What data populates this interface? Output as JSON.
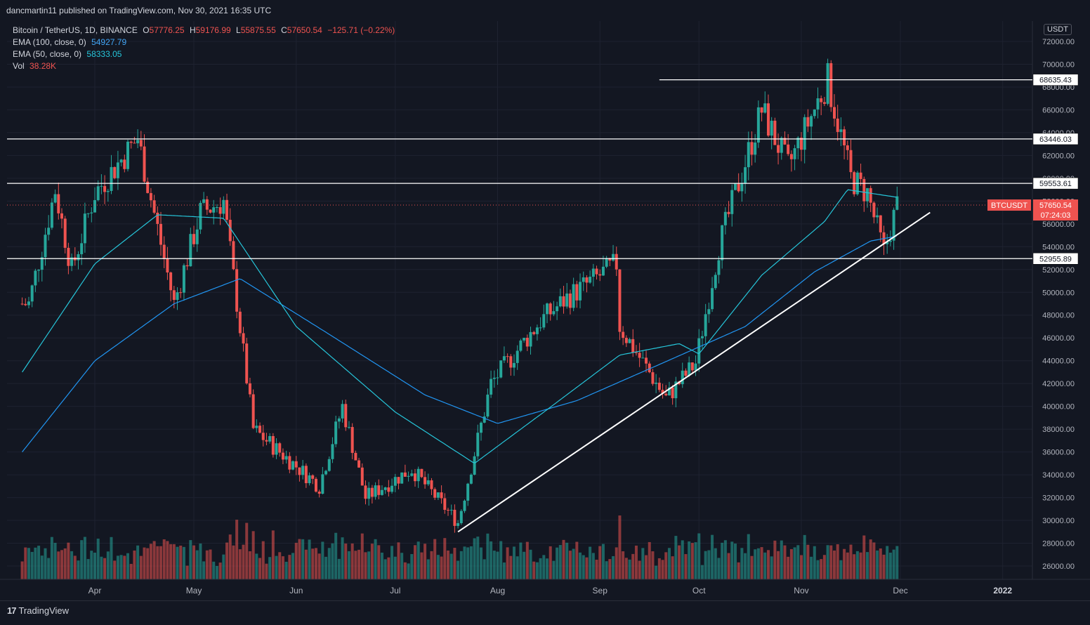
{
  "publisher_line": "dancmartin11 published on TradingView.com, Nov 30, 2021 16:35 UTC",
  "legend": {
    "symbol": "Bitcoin / TetherUS, 1D, BINANCE",
    "ohlc": {
      "o_label": "O",
      "o": "57776.25",
      "h_label": "H",
      "h": "59176.99",
      "l_label": "L",
      "l": "55875.55",
      "c_label": "C",
      "c": "57650.54",
      "chg": "−125.71 (−0.22%)"
    },
    "ema100_label": "EMA (100, close, 0)",
    "ema100_value": "54927.79",
    "ema50_label": "EMA (50, close, 0)",
    "ema50_value": "58333.05",
    "vol_label": "Vol",
    "vol_value": "38.28K"
  },
  "currency_button": "USDT",
  "branding": "TradingView",
  "colors": {
    "background": "#131722",
    "up": "#26a69a",
    "down": "#ef5350",
    "ema50": "#26c6da",
    "ema100": "#2196f3",
    "hline": "#ffffff",
    "last_price_tag": "#ef5350"
  },
  "chart_data": {
    "type": "candlestick",
    "symbol_label": "BTCUSDT",
    "last_price": "57650.54",
    "countdown": "07:24:03",
    "y_axis": {
      "ticks": [
        "72000.00",
        "70000.00",
        "68000.00",
        "66000.00",
        "64000.00",
        "62000.00",
        "60000.00",
        "58000.00",
        "56000.00",
        "54000.00",
        "52000.00",
        "50000.00",
        "48000.00",
        "46000.00",
        "44000.00",
        "42000.00",
        "40000.00",
        "38000.00",
        "36000.00",
        "34000.00",
        "32000.00",
        "30000.00",
        "28000.00",
        "26000.00"
      ],
      "range": [
        25000,
        73000
      ],
      "scale": "linear"
    },
    "x_axis": {
      "ticks": [
        "Apr",
        "May",
        "Jun",
        "Jul",
        "Aug",
        "Sep",
        "Oct",
        "Nov",
        "Dec",
        "2022"
      ]
    },
    "horizontal_levels": [
      {
        "value": 68635.43,
        "label": "68635.43"
      },
      {
        "value": 63446.03,
        "label": "63446.03"
      },
      {
        "value": 59553.61,
        "label": "59553.61"
      },
      {
        "value": 52955.89,
        "label": "52955.89"
      }
    ],
    "trendline": {
      "from": {
        "date": "2021-07-20",
        "value": 29000
      },
      "to": {
        "date": "2021-12-10",
        "value": 57000
      }
    },
    "price_path_keypoints": [
      {
        "date": "2021-03-12",
        "close": 49000
      },
      {
        "date": "2021-03-20",
        "close": 59000
      },
      {
        "date": "2021-03-25",
        "close": 52000
      },
      {
        "date": "2021-04-01",
        "close": 58700
      },
      {
        "date": "2021-04-14",
        "close": 63500
      },
      {
        "date": "2021-04-25",
        "close": 49000
      },
      {
        "date": "2021-05-03",
        "close": 57000
      },
      {
        "date": "2021-05-10",
        "close": 58000
      },
      {
        "date": "2021-05-19",
        "close": 38000
      },
      {
        "date": "2021-06-08",
        "close": 33000
      },
      {
        "date": "2021-06-15",
        "close": 40000
      },
      {
        "date": "2021-06-22",
        "close": 32000
      },
      {
        "date": "2021-07-06",
        "close": 34500
      },
      {
        "date": "2021-07-20",
        "close": 29800
      },
      {
        "date": "2021-07-30",
        "close": 42000
      },
      {
        "date": "2021-08-14",
        "close": 47500
      },
      {
        "date": "2021-08-22",
        "close": 49500
      },
      {
        "date": "2021-09-06",
        "close": 52500
      },
      {
        "date": "2021-09-07",
        "close": 47000
      },
      {
        "date": "2021-09-21",
        "close": 40700
      },
      {
        "date": "2021-09-30",
        "close": 43800
      },
      {
        "date": "2021-10-07",
        "close": 54000
      },
      {
        "date": "2021-10-20",
        "close": 66000
      },
      {
        "date": "2021-10-28",
        "close": 61000
      },
      {
        "date": "2021-11-09",
        "close": 68635
      },
      {
        "date": "2021-11-16",
        "close": 60000
      },
      {
        "date": "2021-11-21",
        "close": 58700
      },
      {
        "date": "2021-11-26",
        "close": 53500
      },
      {
        "date": "2021-11-30",
        "close": 57650
      }
    ],
    "ema50_keypoints": [
      {
        "date": "2021-03-10",
        "value": 43000
      },
      {
        "date": "2021-04-01",
        "value": 52500
      },
      {
        "date": "2021-04-20",
        "value": 56800
      },
      {
        "date": "2021-05-10",
        "value": 56500
      },
      {
        "date": "2021-06-01",
        "value": 47000
      },
      {
        "date": "2021-07-01",
        "value": 39500
      },
      {
        "date": "2021-07-25",
        "value": 35000
      },
      {
        "date": "2021-08-15",
        "value": 39500
      },
      {
        "date": "2021-09-07",
        "value": 44500
      },
      {
        "date": "2021-09-25",
        "value": 45500
      },
      {
        "date": "2021-10-01",
        "value": 44600
      },
      {
        "date": "2021-10-20",
        "value": 51500
      },
      {
        "date": "2021-11-08",
        "value": 56200
      },
      {
        "date": "2021-11-15",
        "value": 59000
      },
      {
        "date": "2021-11-30",
        "value": 58333
      }
    ],
    "ema100_keypoints": [
      {
        "date": "2021-03-10",
        "value": 36000
      },
      {
        "date": "2021-04-01",
        "value": 44000
      },
      {
        "date": "2021-04-25",
        "value": 49000
      },
      {
        "date": "2021-05-15",
        "value": 51200
      },
      {
        "date": "2021-06-10",
        "value": 46500
      },
      {
        "date": "2021-07-10",
        "value": 41000
      },
      {
        "date": "2021-08-01",
        "value": 38500
      },
      {
        "date": "2021-08-25",
        "value": 40500
      },
      {
        "date": "2021-09-20",
        "value": 43800
      },
      {
        "date": "2021-10-15",
        "value": 47000
      },
      {
        "date": "2021-11-05",
        "value": 51800
      },
      {
        "date": "2021-11-22",
        "value": 54500
      },
      {
        "date": "2021-11-30",
        "value": 54928
      }
    ],
    "grid": true
  }
}
